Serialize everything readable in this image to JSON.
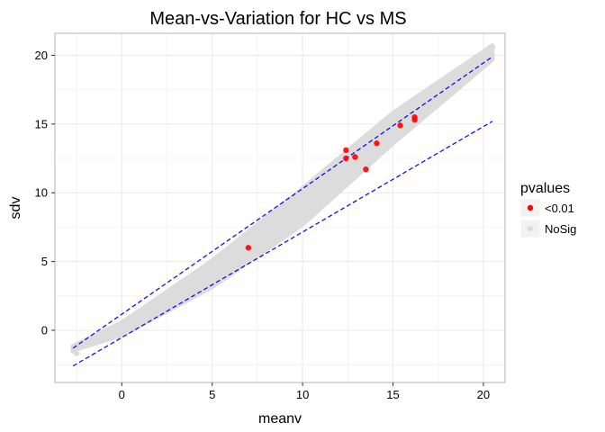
{
  "chart_data": {
    "type": "scatter",
    "title": "Mean-vs-Variation for HC vs MS",
    "xlabel": "meanv",
    "ylabel": "sdv",
    "xlim": [
      -3.7,
      21.2
    ],
    "ylim": [
      -3.8,
      21.6
    ],
    "x_ticks": [
      0,
      5,
      10,
      15,
      20
    ],
    "y_ticks": [
      0,
      5,
      10,
      15,
      20
    ],
    "x_tick_labels": [
      "0",
      "5",
      "10",
      "15",
      "20"
    ],
    "y_tick_labels": [
      "0",
      "5",
      "10",
      "15",
      "20"
    ],
    "grid": true,
    "legend": {
      "title": "pvalues",
      "placement": "right",
      "entries": [
        {
          "label": "<0.01",
          "color": "#ff0000"
        },
        {
          "label": "NoSig",
          "color": "#dcdcdc"
        }
      ]
    },
    "colors": {
      "sig": "#ff0000",
      "nosig": "#dcdcdc",
      "line": "#0000ff",
      "panel": "#ffffff",
      "grid": "#ebebeb"
    },
    "series": [
      {
        "name": "NoSig",
        "color": "#dcdcdc",
        "trend_center": [
          [
            -2.7,
            -1.3
          ],
          [
            0,
            0.1
          ],
          [
            5,
            4.1
          ],
          [
            10,
            9.0
          ],
          [
            15,
            14.7
          ],
          [
            20.5,
            20.2
          ]
        ],
        "trend_halfwidth": [
          [
            -2.7,
            0.15
          ],
          [
            0,
            0.45
          ],
          [
            5,
            0.95
          ],
          [
            10,
            1.3
          ],
          [
            15,
            1.1
          ],
          [
            20.5,
            0.5
          ]
        ],
        "points": [
          [
            20.5,
            20.6
          ],
          [
            19.0,
            18.3
          ],
          [
            18.8,
            17.9
          ],
          [
            18.5,
            17.6
          ],
          [
            17.3,
            16.9
          ],
          [
            16.8,
            16.6
          ],
          [
            16.2,
            15.6
          ],
          [
            15.6,
            14.8
          ],
          [
            14.6,
            14.5
          ],
          [
            13.9,
            13.4
          ],
          [
            13.3,
            13.0
          ],
          [
            12.8,
            12.6
          ],
          [
            12.3,
            11.7
          ],
          [
            12.8,
            11.4
          ],
          [
            13.5,
            12.1
          ],
          [
            -2.7,
            -1.5
          ],
          [
            -2.5,
            -1.7
          ]
        ]
      },
      {
        "name": "<0.01",
        "color": "#ff0000",
        "points": [
          [
            16.2,
            15.5
          ],
          [
            16.2,
            15.3
          ],
          [
            15.4,
            14.9
          ],
          [
            14.1,
            13.6
          ],
          [
            12.4,
            13.1
          ],
          [
            12.4,
            12.5
          ],
          [
            13.5,
            11.7
          ],
          [
            7.0,
            6.0
          ],
          [
            12.9,
            12.6
          ]
        ]
      }
    ],
    "lines": [
      {
        "name": "upper",
        "x": [
          -2.7,
          20.5
        ],
        "y": [
          -1.3,
          19.9
        ],
        "style": "dashed",
        "color": "#0000ff"
      },
      {
        "name": "lower",
        "x": [
          -2.7,
          20.5
        ],
        "y": [
          -2.6,
          15.2
        ],
        "style": "dashed",
        "color": "#0000ff"
      }
    ]
  }
}
